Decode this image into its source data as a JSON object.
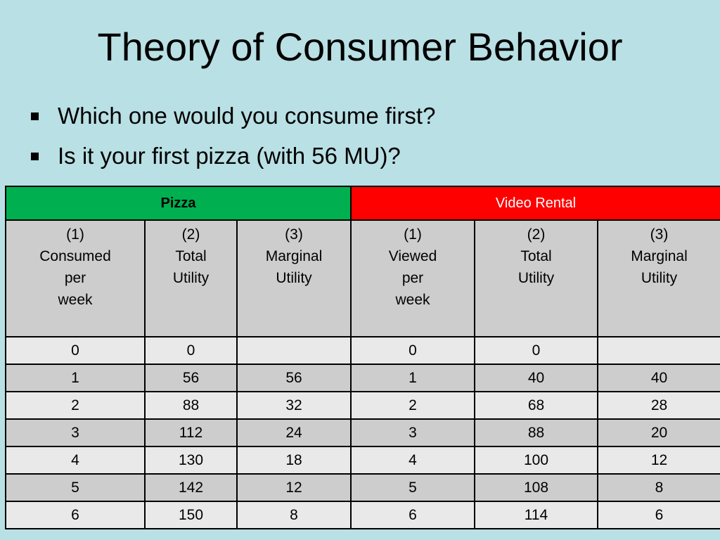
{
  "slide": {
    "title": "Theory of Consumer Behavior",
    "bullets": [
      "Which one would you consume first?",
      "Is it your first pizza (with 56 MU)?"
    ]
  },
  "table": {
    "groups": {
      "pizza": "Pizza",
      "video": "Video Rental"
    },
    "headers": [
      [
        "(1)",
        "Consumed",
        "per",
        "week"
      ],
      [
        "(2)",
        "Total",
        "Utility",
        ""
      ],
      [
        "(3)",
        "Marginal",
        "Utility",
        ""
      ],
      [
        "(1)",
        "Viewed",
        "per",
        "week"
      ],
      [
        "(2)",
        "Total",
        "Utility",
        ""
      ],
      [
        "(3)",
        "Marginal",
        "Utility",
        ""
      ]
    ],
    "rows": [
      [
        "0",
        "0",
        "",
        "0",
        "0",
        ""
      ],
      [
        "1",
        "56",
        "56",
        "1",
        "40",
        "40"
      ],
      [
        "2",
        "88",
        "32",
        "2",
        "68",
        "28"
      ],
      [
        "3",
        "112",
        "24",
        "3",
        "88",
        "20"
      ],
      [
        "4",
        "130",
        "18",
        "4",
        "100",
        "12"
      ],
      [
        "5",
        "142",
        "12",
        "5",
        "108",
        "8"
      ],
      [
        "6",
        "150",
        "8",
        "6",
        "114",
        "6"
      ]
    ]
  },
  "colors": {
    "background": "#b9e0e4",
    "pizza_header": "#00b050",
    "video_header": "#ff0000",
    "header_cells": "#cdcdcd",
    "row_light": "#e9e9e9",
    "row_dark": "#cdcdcd"
  }
}
